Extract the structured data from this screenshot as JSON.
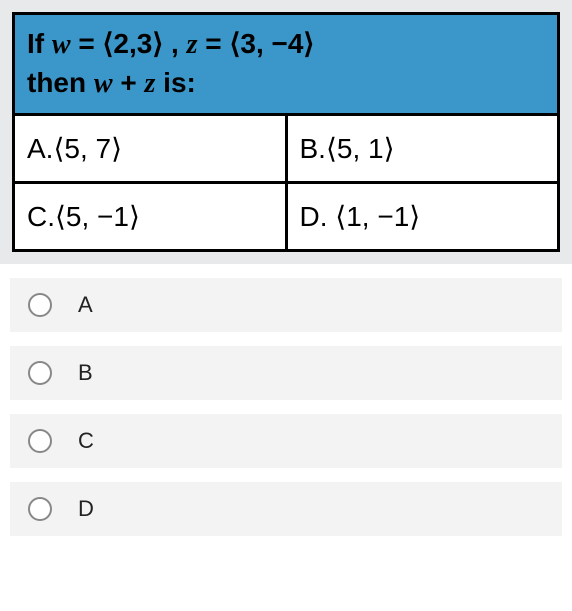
{
  "colors": {
    "header_bg": "#3b97c9",
    "table_border": "#000000",
    "page_bg_strip": "#e8e9eb",
    "choice_bg": "#f3f3f3",
    "radio_border": "#888888"
  },
  "question": {
    "line1_prefix": "If ",
    "w_var": "w",
    "equals1": " =   ",
    "w_vec": "⟨2,3⟩",
    "comma_z": "   , ",
    "z_var": "z",
    "equals2": " =   ",
    "z_vec": "⟨3, −4⟩",
    "line2_prefix": "then ",
    "sum_expr_w": "w",
    "sum_plus": " + ",
    "sum_expr_z": "z",
    "line2_suffix": " is:"
  },
  "cells": {
    "a_label": "A.",
    "a_vec": "⟨5, 7⟩",
    "b_label": "B.",
    "b_vec": "⟨5, 1⟩",
    "c_label": "C.",
    "c_vec": "⟨5, −1⟩",
    "d_label": "D. ",
    "d_vec": "⟨1, −1⟩"
  },
  "choices": {
    "a": "A",
    "b": "B",
    "c": "C",
    "d": "D"
  }
}
